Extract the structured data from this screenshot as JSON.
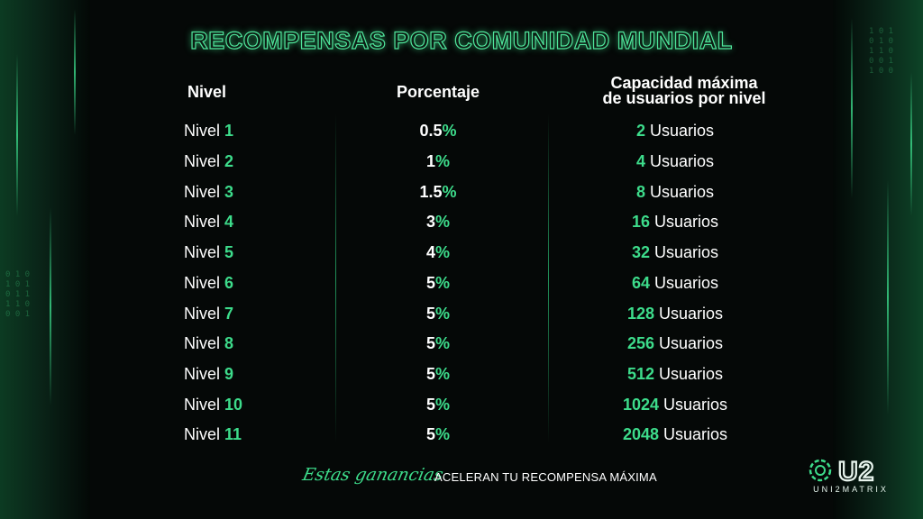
{
  "title": "RECOMPENSAS POR COMUNIDAD MUNDIAL",
  "headers": {
    "nivel": "Nivel",
    "porcentaje": "Porcentaje",
    "capacidad_line1": "Capacidad máxima",
    "capacidad_line2": "de usuarios por nivel"
  },
  "rows": [
    {
      "nivel_label": "Nivel",
      "nivel_num": "1",
      "pct_num": "0.5",
      "pct_sign": "%",
      "cap_num": "2",
      "cap_label": "Usuarios"
    },
    {
      "nivel_label": "Nivel",
      "nivel_num": "2",
      "pct_num": "1",
      "pct_sign": "%",
      "cap_num": "4",
      "cap_label": "Usuarios"
    },
    {
      "nivel_label": "Nivel",
      "nivel_num": "3",
      "pct_num": "1.5",
      "pct_sign": "%",
      "cap_num": "8",
      "cap_label": "Usuarios"
    },
    {
      "nivel_label": "Nivel",
      "nivel_num": "4",
      "pct_num": "3",
      "pct_sign": "%",
      "cap_num": "16",
      "cap_label": "Usuarios"
    },
    {
      "nivel_label": "Nivel",
      "nivel_num": "5",
      "pct_num": "4",
      "pct_sign": "%",
      "cap_num": "32",
      "cap_label": "Usuarios"
    },
    {
      "nivel_label": "Nivel",
      "nivel_num": "6",
      "pct_num": "5",
      "pct_sign": "%",
      "cap_num": "64",
      "cap_label": "Usuarios"
    },
    {
      "nivel_label": "Nivel",
      "nivel_num": "7",
      "pct_num": "5",
      "pct_sign": "%",
      "cap_num": "128",
      "cap_label": "Usuarios"
    },
    {
      "nivel_label": "Nivel",
      "nivel_num": "8",
      "pct_num": "5",
      "pct_sign": "%",
      "cap_num": "256",
      "cap_label": "Usuarios"
    },
    {
      "nivel_label": "Nivel",
      "nivel_num": "9",
      "pct_num": "5",
      "pct_sign": "%",
      "cap_num": "512",
      "cap_label": "Usuarios"
    },
    {
      "nivel_label": "Nivel",
      "nivel_num": "10",
      "pct_num": "5",
      "pct_sign": "%",
      "cap_num": "1024",
      "cap_label": "Usuarios"
    },
    {
      "nivel_label": "Nivel",
      "nivel_num": "11",
      "pct_num": "5",
      "pct_sign": "%",
      "cap_num": "2048",
      "cap_label": "Usuarios"
    }
  ],
  "footer": {
    "script_text": "Estas ganancias",
    "text": "ACELERAN TU RECOMPENSA MÁXIMA"
  },
  "logo": {
    "mark": "U2",
    "brand": "UNI2MATRIX",
    "icon": "uni2matrix-logo-icon"
  },
  "colors": {
    "accent": "#3ddc8b",
    "background": "#050807",
    "text": "#ffffff"
  }
}
